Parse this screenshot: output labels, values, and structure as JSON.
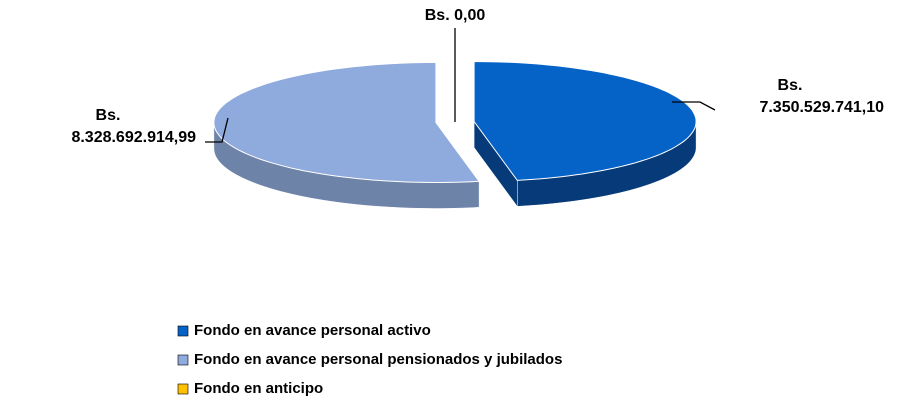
{
  "chart_data": {
    "type": "pie3d",
    "categories": [
      "Fondo en avance personal activo",
      "Fondo en avance personal pensionados y jubilados",
      "Fondo en anticipo"
    ],
    "values": [
      7350529741.1,
      8328692914.99,
      0
    ],
    "value_labels": [
      "Bs. 7.350.529.741,10",
      "Bs. 8.328.692.914,99",
      "Bs. 0,00"
    ],
    "colors": [
      "#0563c8",
      "#8faadc",
      "#ffc000"
    ],
    "side_colors": [
      "#063a78",
      "#6e83a8",
      "#c79500"
    ],
    "legend": "bottom"
  }
}
